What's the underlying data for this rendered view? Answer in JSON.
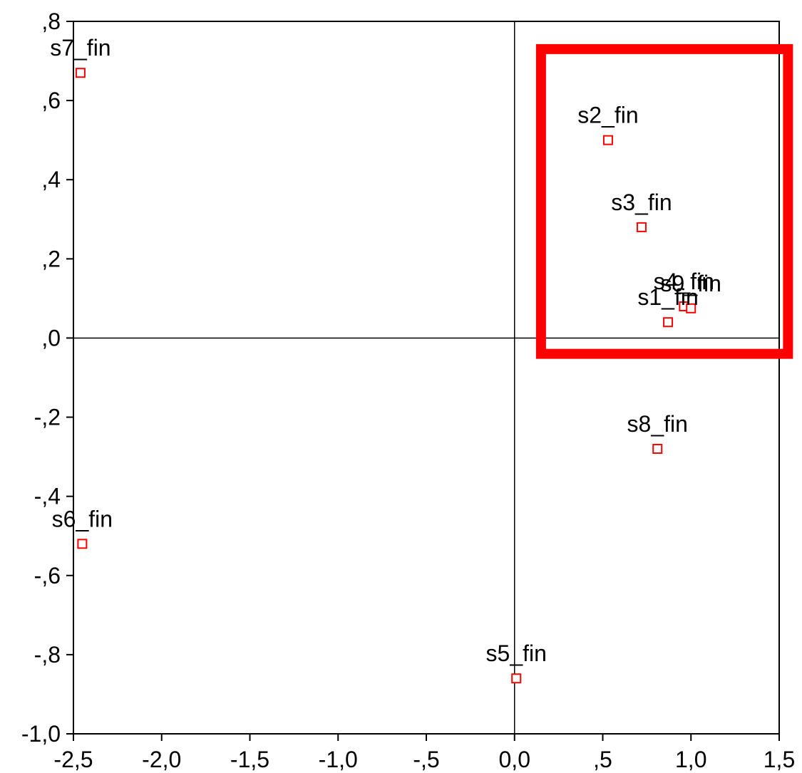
{
  "chart_data": {
    "type": "scatter",
    "title": "",
    "xlabel": "",
    "ylabel": "",
    "xlim": [
      -2.5,
      1.5
    ],
    "ylim": [
      -1.0,
      0.8
    ],
    "grid": false,
    "x_ticks": [
      {
        "value": -2.5,
        "label": "-2,5"
      },
      {
        "value": -2.0,
        "label": "-2,0"
      },
      {
        "value": -1.5,
        "label": "-1,5"
      },
      {
        "value": -1.0,
        "label": "-1,0"
      },
      {
        "value": -0.5,
        "label": "-,5"
      },
      {
        "value": 0.0,
        "label": "0,0"
      },
      {
        "value": 0.5,
        "label": ",5"
      },
      {
        "value": 1.0,
        "label": "1,0"
      },
      {
        "value": 1.5,
        "label": "1,5"
      }
    ],
    "y_ticks": [
      {
        "value": 0.8,
        "label": ",8"
      },
      {
        "value": 0.6,
        "label": ",6"
      },
      {
        "value": 0.4,
        "label": ",4"
      },
      {
        "value": 0.2,
        "label": ",2"
      },
      {
        "value": 0.0,
        "label": ",0"
      },
      {
        "value": -0.2,
        "label": "-,2"
      },
      {
        "value": -0.4,
        "label": "-,4"
      },
      {
        "value": -0.6,
        "label": "-,6"
      },
      {
        "value": -0.8,
        "label": "-,8"
      },
      {
        "value": -1.0,
        "label": "-1,0"
      }
    ],
    "points": [
      {
        "label": "s7_fin",
        "x": -2.46,
        "y": 0.67
      },
      {
        "label": "s2_fin",
        "x": 0.53,
        "y": 0.5
      },
      {
        "label": "s3_fin",
        "x": 0.72,
        "y": 0.28
      },
      {
        "label": "s4_fin",
        "x": 0.96,
        "y": 0.08
      },
      {
        "label": "s9_fin",
        "x": 1.0,
        "y": 0.075
      },
      {
        "label": "s1_fin",
        "x": 0.87,
        "y": 0.04
      },
      {
        "label": "s8_fin",
        "x": 0.81,
        "y": -0.28
      },
      {
        "label": "s6_fin",
        "x": -2.45,
        "y": -0.52
      },
      {
        "label": "s5_fin",
        "x": 0.01,
        "y": -0.86
      }
    ],
    "marker_color": "#ff0000",
    "highlight_box": {
      "x_range": [
        0.15,
        1.55
      ],
      "y_range": [
        -0.04,
        0.73
      ],
      "color": "#ff0000"
    }
  }
}
